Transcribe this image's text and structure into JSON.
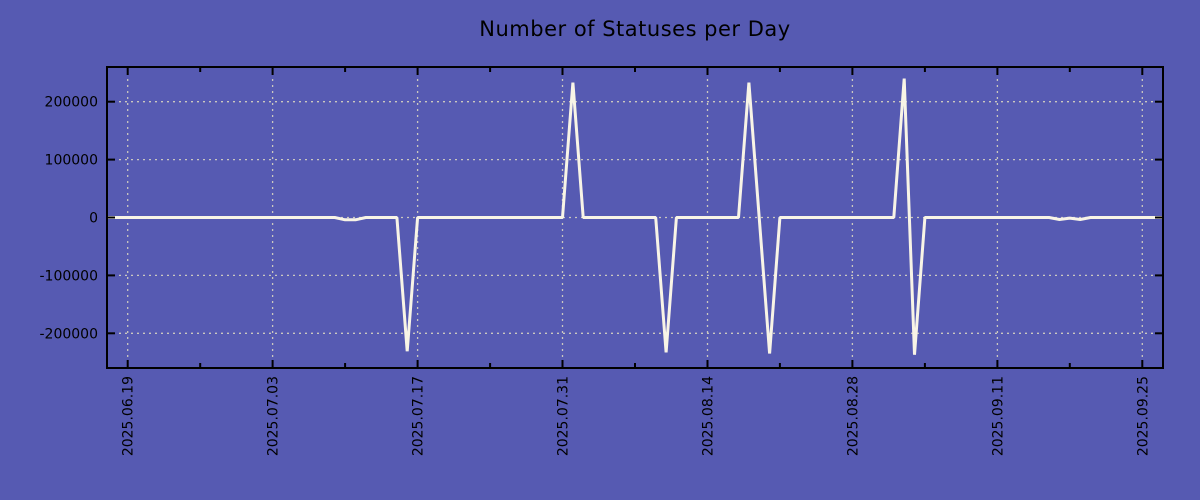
{
  "chart_data": {
    "type": "line",
    "title": "Number of Statuses per Day",
    "xlabel": "",
    "ylabel": "",
    "legend": "none",
    "grid": "dashed",
    "background_color": "#565ab2",
    "line_color": "#f8f4e6",
    "grid_color": "#cbc8bf",
    "axis_color": "#000000",
    "title_color": "#000000",
    "ylim": [
      -260000,
      260000
    ],
    "x_start_date": "2025-06-17",
    "x_end_date": "2025-09-27",
    "x_major_ticks": [
      "2025-06-19",
      "2025-07-03",
      "2025-07-17",
      "2025-07-31",
      "2025-08-14",
      "2025-08-28",
      "2025-09-11",
      "2025-09-25"
    ],
    "x_major_tick_labels": [
      "2025.06.19",
      "2025.07.03",
      "2025.07.17",
      "2025.07.31",
      "2025.08.14",
      "2025.08.28",
      "2025.09.11",
      "2025.09.25"
    ],
    "x_minor_ticks": [
      "2025-06-26",
      "2025-07-10",
      "2025-07-24",
      "2025-08-07",
      "2025-08-21",
      "2025-09-04",
      "2025-09-18"
    ],
    "y_major_ticks": [
      200000,
      100000,
      0,
      -100000,
      -200000
    ],
    "y_tick_labels": [
      "200000",
      "100000",
      "0",
      "-100000",
      "-200000"
    ],
    "series": [
      {
        "name": "statuses-per-day",
        "baseline_value": 0,
        "nonzero_points": {
          "2025-07-10": -4000,
          "2025-07-11": -4000,
          "2025-07-16": -231000,
          "2025-08-01": 233000,
          "2025-08-10": -233000,
          "2025-08-18": 233000,
          "2025-08-20": -235000,
          "2025-09-02": 240000,
          "2025-09-03": -237000,
          "2025-09-17": -3500,
          "2025-09-18": -1000,
          "2025-09-19": -3500
        }
      }
    ]
  }
}
